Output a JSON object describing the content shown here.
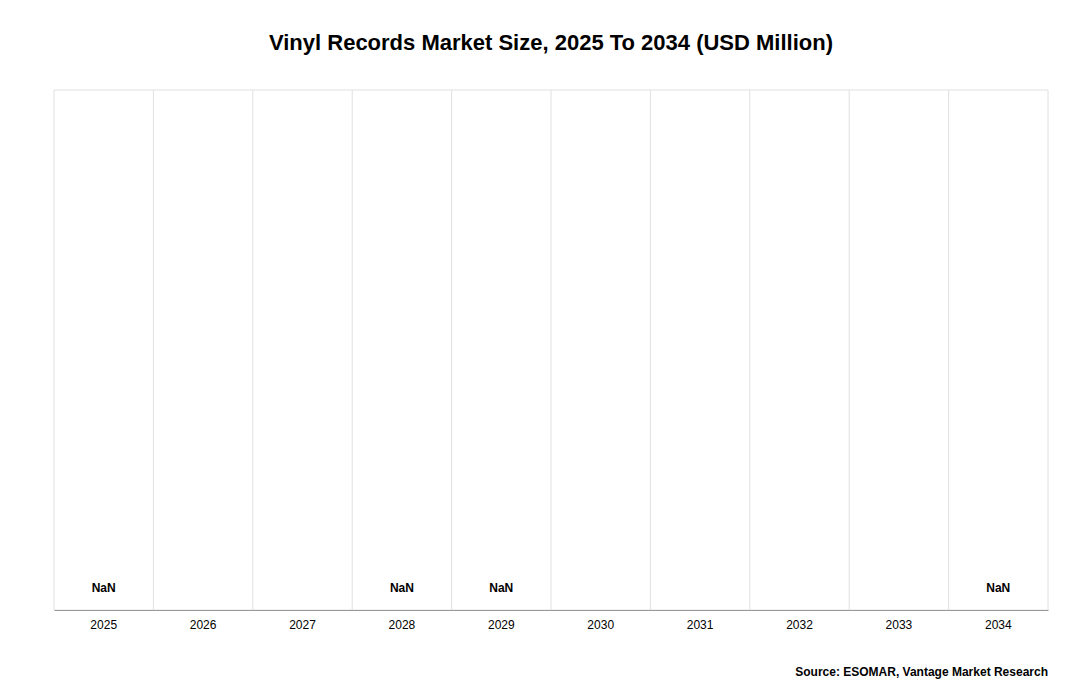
{
  "chart_data": {
    "type": "bar",
    "title": "Vinyl Records Market Size, 2025 To 2034 (USD Million)",
    "categories": [
      2025,
      2026,
      2027,
      2028,
      2029,
      2030,
      2031,
      2032,
      2033,
      2034
    ],
    "values": [
      null,
      null,
      null,
      null,
      null,
      null,
      null,
      null,
      null,
      null
    ],
    "value_labels": [
      "NaN",
      null,
      null,
      "NaN",
      "NaN",
      null,
      null,
      null,
      null,
      "NaN"
    ],
    "data_labels": true,
    "ylim": [
      0,
      1.0
    ],
    "tick_labels": "x",
    "grid": true,
    "source": "Source: ESOMAR, Vantage Market Research"
  }
}
